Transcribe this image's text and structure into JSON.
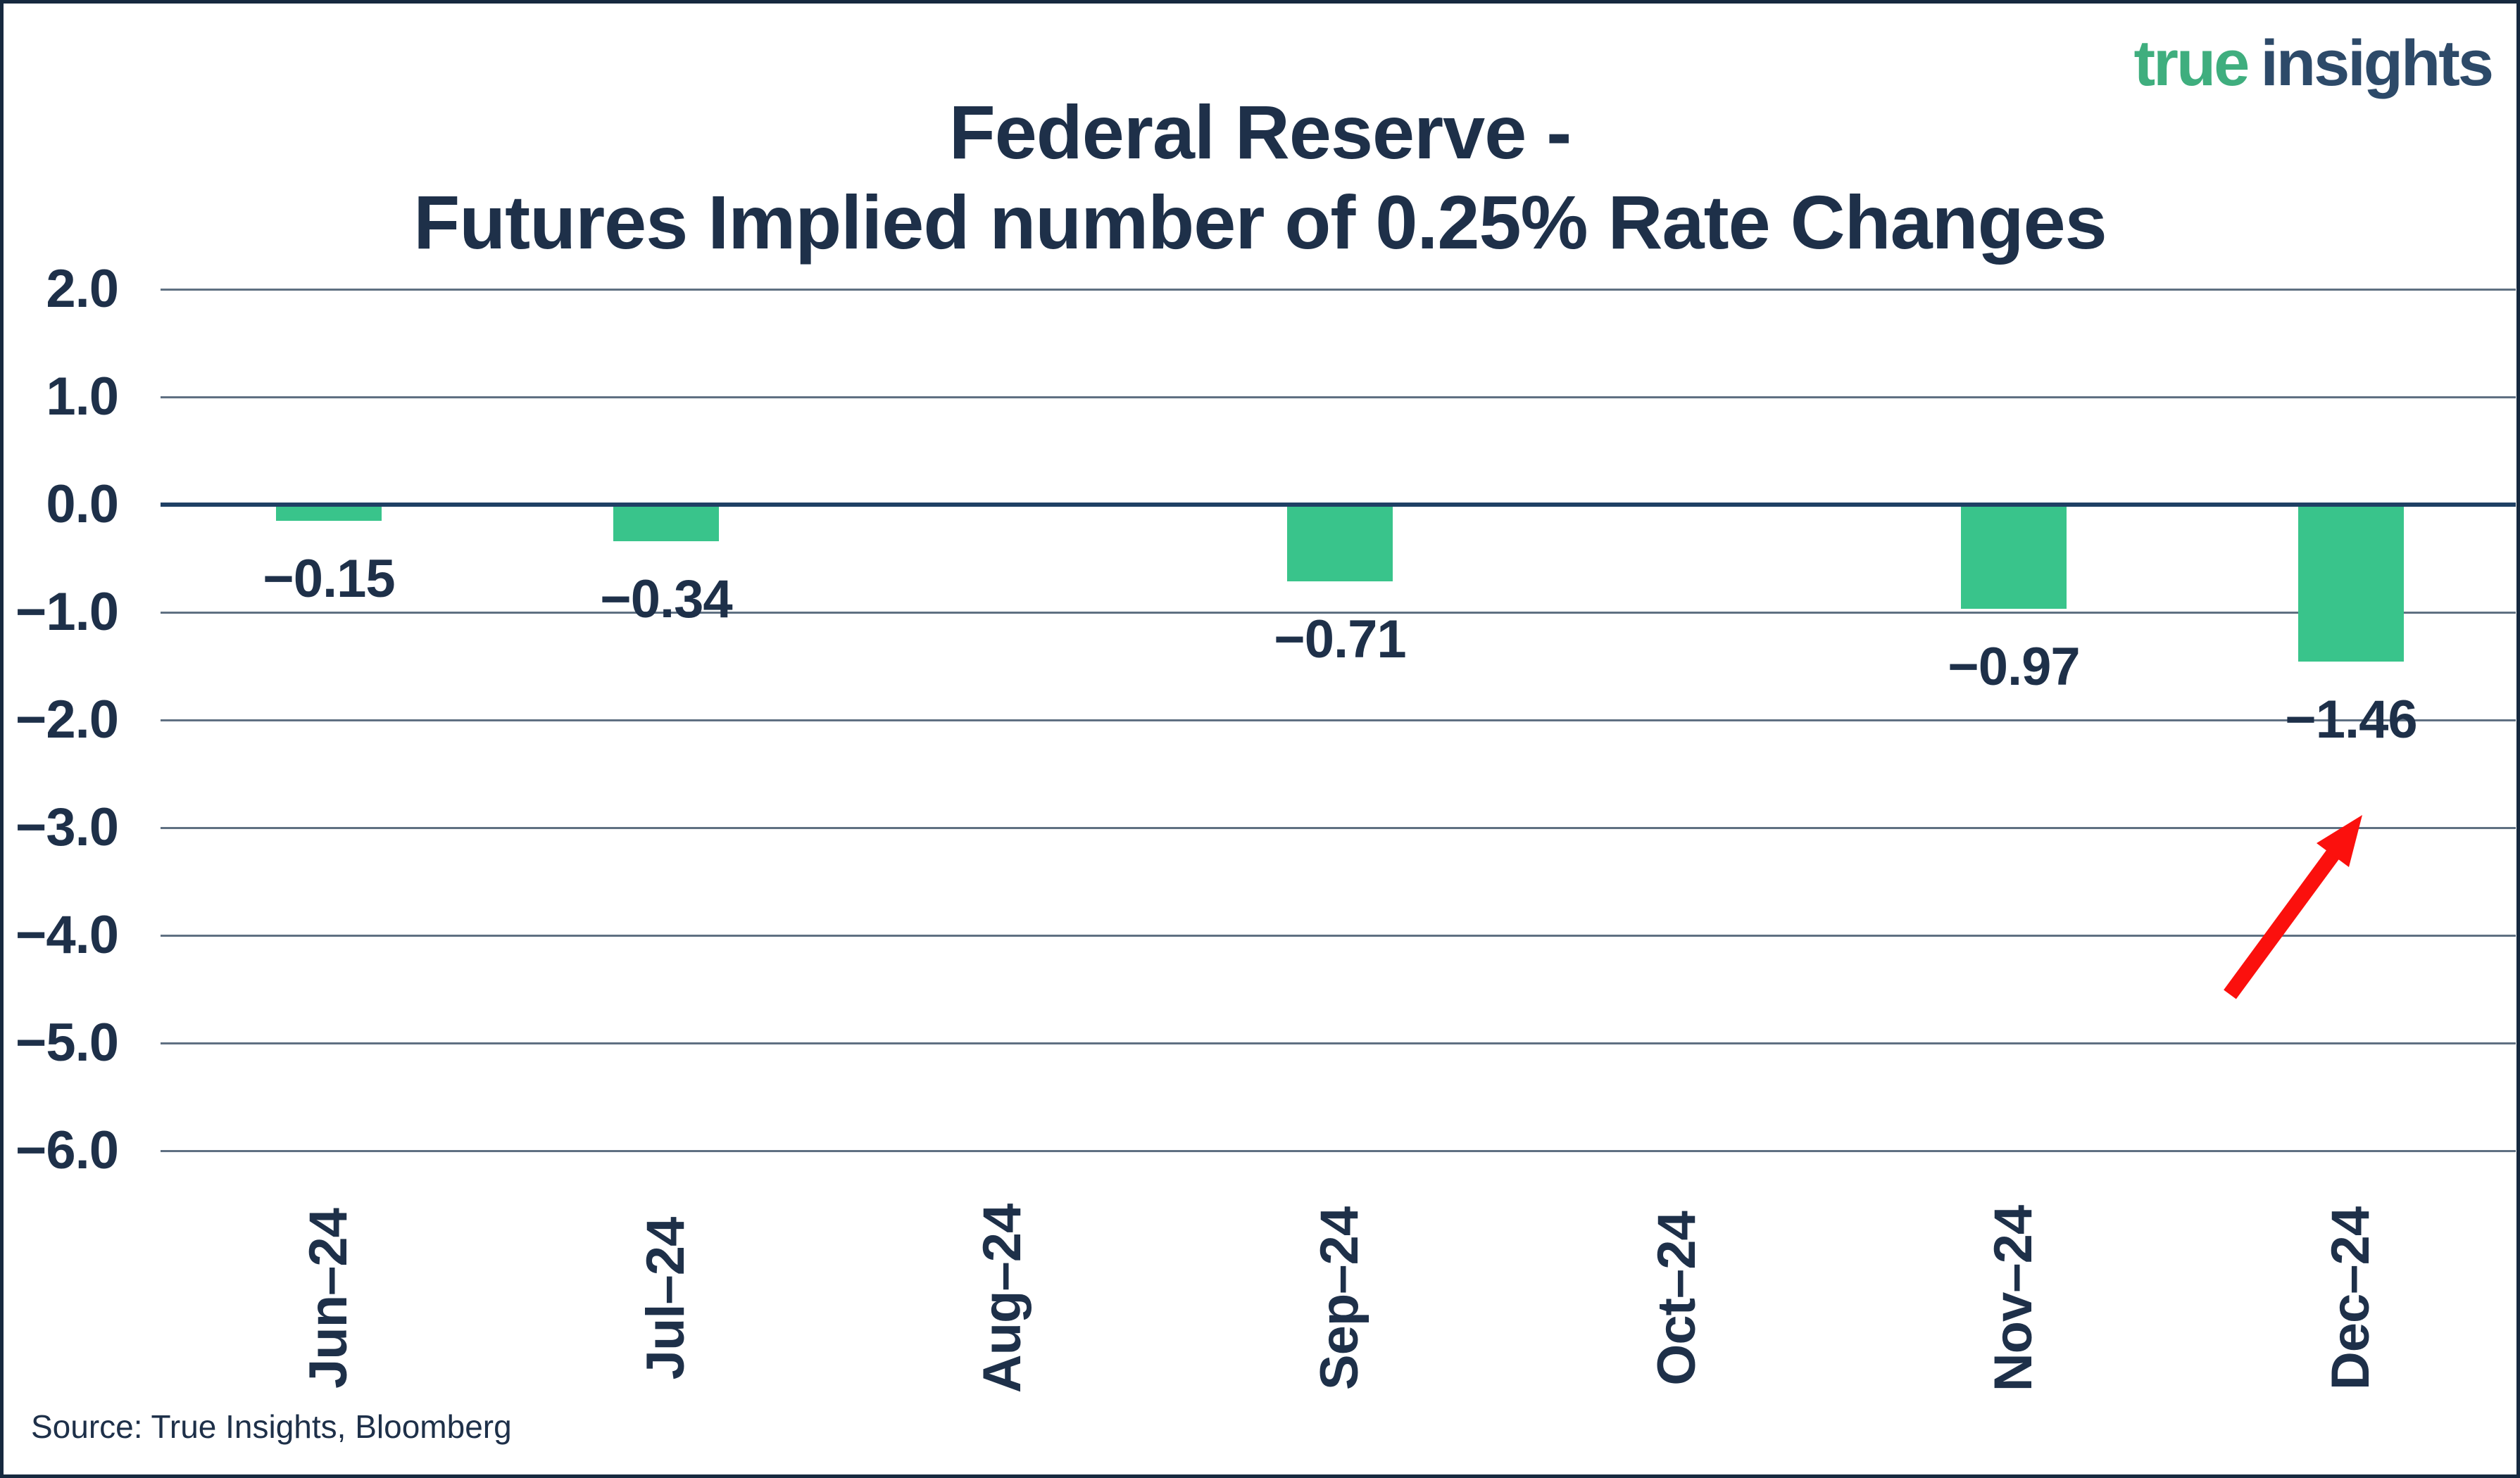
{
  "header": {
    "title_line1": "Federal Reserve -",
    "title_line2": "Futures Implied number of 0.25% Rate Changes"
  },
  "logo": {
    "word1": "true",
    "word2": "insights"
  },
  "source": {
    "text": "Source: True Insights, Bloomberg"
  },
  "colors": {
    "bar_green": "#39c48b",
    "logo_green": "#3fae7e",
    "navy_text": "#1e3049",
    "logo_navy": "#2d4a69",
    "zero_axis_line": "#1f4064",
    "gridline": "#5f7082",
    "arrow_red": "#fb100d",
    "border": "#16293f"
  },
  "chart_data": {
    "type": "bar",
    "title": "Federal Reserve - Futures Implied number of 0.25% Rate Changes",
    "xlabel": "",
    "ylabel": "",
    "categories": [
      "Jun–24",
      "Jul–24",
      "Aug–24",
      "Sep–24",
      "Oct–24",
      "Nov–24",
      "Dec–24"
    ],
    "values": [
      -0.15,
      -0.34,
      null,
      -0.71,
      null,
      -0.97,
      -1.46
    ],
    "bar_labels": [
      "−0.15",
      "−0.34",
      null,
      "−0.71",
      null,
      "−0.97",
      "−1.46"
    ],
    "y_ticks": [
      2.0,
      1.0,
      0.0,
      -1.0,
      -2.0,
      -3.0,
      -4.0,
      -5.0,
      -6.0
    ],
    "y_tick_labels": [
      "2.0",
      "1.0",
      "0.0",
      "−1.0",
      "−2.0",
      "−3.0",
      "−4.0",
      "−5.0",
      "−6.0"
    ],
    "ylim": [
      -6.6,
      2.0
    ],
    "grid": "horizontal",
    "legend": "none",
    "bar_color": "#39c48b",
    "annotation": {
      "type": "arrow",
      "color": "#fb100d",
      "points_at": "Dec–24 bar"
    }
  }
}
